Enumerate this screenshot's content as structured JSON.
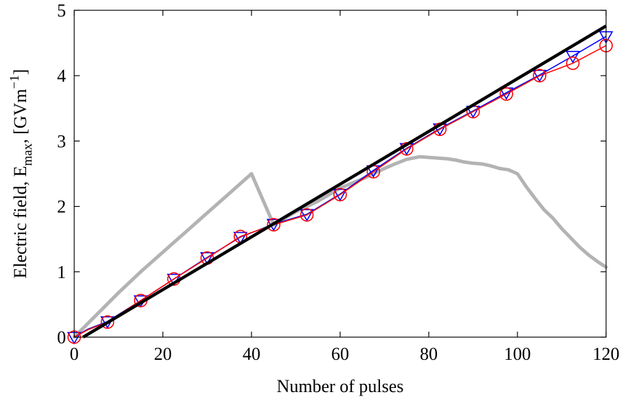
{
  "chart_data": {
    "type": "line",
    "title": "",
    "xlabel": "Number of pulses",
    "ylabel": {
      "text": "Electric field, E",
      "sub": "max",
      "comma": ", [GVm",
      "sup": "−1",
      "close": "]"
    },
    "xlim": [
      0,
      120
    ],
    "ylim": [
      0,
      5
    ],
    "xticks": [
      0,
      20,
      40,
      60,
      80,
      100,
      120
    ],
    "yticks": [
      0,
      1,
      2,
      3,
      4,
      5
    ],
    "grid": false,
    "legend": "none",
    "series": [
      {
        "color": "#b3b3b3",
        "x": [
          0,
          5,
          10,
          15,
          20,
          25,
          30,
          35,
          40,
          45,
          50,
          55,
          60,
          65,
          70,
          72,
          75,
          78,
          80,
          82,
          84,
          86,
          88,
          90,
          92,
          94,
          96,
          98,
          100,
          102,
          104,
          106,
          108,
          110,
          112,
          114,
          116,
          118,
          120
        ],
        "y": [
          0,
          0.34,
          0.68,
          1.0,
          1.3,
          1.6,
          1.9,
          2.2,
          2.5,
          1.72,
          1.92,
          2.08,
          2.28,
          2.42,
          2.58,
          2.64,
          2.72,
          2.76,
          2.75,
          2.74,
          2.73,
          2.71,
          2.68,
          2.66,
          2.65,
          2.62,
          2.58,
          2.56,
          2.5,
          2.3,
          2.12,
          1.95,
          1.82,
          1.66,
          1.52,
          1.38,
          1.26,
          1.16,
          1.07
        ]
      },
      {
        "color": "#0000ff",
        "marker": "triangle-down",
        "x": [
          0,
          3,
          7.5,
          15,
          22.5,
          30,
          37.5,
          45,
          52.5,
          60,
          67.5,
          75,
          82.5,
          90,
          97.5,
          105,
          112.5,
          120
        ],
        "y": [
          0,
          0.12,
          0.24,
          0.56,
          0.89,
          1.22,
          1.53,
          1.73,
          1.88,
          2.19,
          2.55,
          2.89,
          3.19,
          3.46,
          3.74,
          4.01,
          4.3,
          4.6
        ]
      },
      {
        "color": "#ff0000",
        "marker": "circle",
        "x": [
          0,
          3,
          7.5,
          15,
          22.5,
          30,
          37.5,
          45,
          52.5,
          60,
          67.5,
          75,
          82.5,
          90,
          97.5,
          105,
          112.5,
          120
        ],
        "y": [
          0,
          0.11,
          0.23,
          0.56,
          0.89,
          1.21,
          1.54,
          1.72,
          1.87,
          2.18,
          2.53,
          2.88,
          3.18,
          3.45,
          3.72,
          4.0,
          4.19,
          4.46
        ]
      },
      {
        "color": "#000000",
        "x": [
          2,
          120
        ],
        "y": [
          0,
          4.76
        ]
      }
    ]
  }
}
